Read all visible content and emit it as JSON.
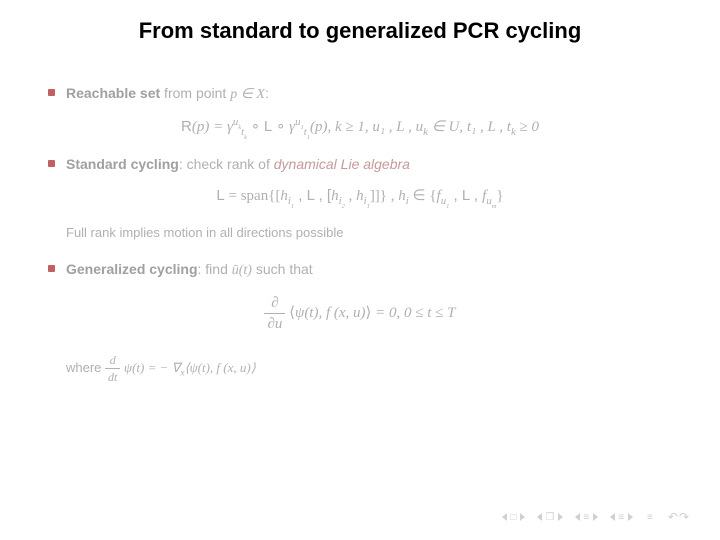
{
  "title": "From standard to generalized PCR cycling",
  "text_colors": {
    "body": "#b0b0b0",
    "strong": "#a0a0a0",
    "accent": "#c49a9a",
    "bullet": "#c06060",
    "title": "#000000",
    "nav": "#d0d0d0"
  },
  "bullets": {
    "b1": {
      "label": "Reachable set",
      "tail_pre": " from point ",
      "tail_math": "p ∈ X",
      "tail_post": ":"
    },
    "b2": {
      "label": "Standard cycling",
      "tail_pre": ": check rank of ",
      "tail_accent": "dynamical Lie algebra"
    },
    "b3": {
      "label": "Generalized cycling",
      "tail_pre": ": find ",
      "tail_math": "ū(t)",
      "tail_post": " such that"
    }
  },
  "eq1": {
    "R": "R",
    "lp": "(p) = ",
    "gamma": "γ",
    "uk": "u",
    "uk_k": "k",
    "tk": "t",
    "tk_k": "k",
    "circ": " ∘ ",
    "dots": "L",
    "u1": "u",
    "u1_1": "1",
    "t1": "t",
    "t1_1": "1",
    "of_p": "(p),",
    "cond": "   k ≥ 1,   u₁ , L , u",
    "cond_k": "k",
    "cond_mid": " ∈ U,   t₁ , L , t",
    "cond_k2": "k",
    "cond_end": " ≥ 0"
  },
  "eq2": {
    "L": "L",
    "eq": " = span{[",
    "h": "h",
    "i1": "i",
    "i1_1": "1",
    "c1": " , L , [",
    "i2": "i",
    "i2_2": "2",
    "c2": " , ",
    "i1b": "i",
    "i1b_1": "1",
    "close": "]]} ,  ",
    "hi": "h",
    "hi_i": "i",
    "in": " ∈ {",
    "f": "f",
    "u1": "u",
    "u1_1": "1",
    "mid": " , L , ",
    "um": "u",
    "um_m": "m",
    "end": "}"
  },
  "note2": "Full rank implies motion in all directions possible",
  "eq3": {
    "dpsi_du_num": "∂",
    "dpsi_du_den": "∂u",
    "bra": "⟨",
    "psi": "ψ(t), f (x, u)",
    "ket": "⟩",
    "eq0": " = 0,   0 ≤ t ≤ T"
  },
  "eq3b": {
    "pre": "where ",
    "num": "d",
    "den": "dt",
    "psi": "ψ(t) = − ∇",
    "sub": "x",
    "rest": "⟨ψ(t), f (x, u)⟩"
  },
  "nav": {
    "sym_frame": "□",
    "sym_doc": "❐",
    "sym_line1": "≡",
    "sym_line2": "≡",
    "sym_eq": "≡",
    "undo": "↶↷"
  }
}
